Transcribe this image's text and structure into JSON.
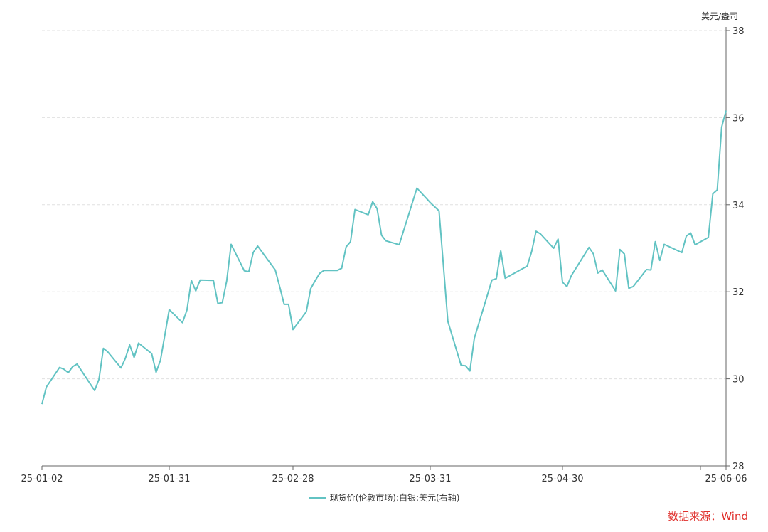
{
  "chart_data": {
    "type": "line",
    "title": "",
    "y_unit_label": "美元/盎司",
    "yaxis_side": "right",
    "ylim": [
      28,
      38
    ],
    "yticks": [
      28,
      30,
      32,
      34,
      36,
      38
    ],
    "xtick_labels": [
      "25-01-02",
      "25-01-31",
      "25-02-28",
      "25-03-31",
      "25-04-30",
      "25-06-06"
    ],
    "grid": "horizontal dashed",
    "legend_position": "bottom",
    "line_color": "#62c3c3",
    "series": [
      {
        "name": "现货价(伦敦市场):白银:美元(右轴)",
        "points": [
          [
            "2025-01-02",
            29.42
          ],
          [
            "2025-01-03",
            29.81
          ],
          [
            "2025-01-06",
            30.26
          ],
          [
            "2025-01-07",
            30.22
          ],
          [
            "2025-01-08",
            30.14
          ],
          [
            "2025-01-09",
            30.28
          ],
          [
            "2025-01-10",
            30.34
          ],
          [
            "2025-01-14",
            29.73
          ],
          [
            "2025-01-15",
            29.99
          ],
          [
            "2025-01-16",
            30.7
          ],
          [
            "2025-01-17",
            30.62
          ],
          [
            "2025-01-20",
            30.25
          ],
          [
            "2025-01-21",
            30.47
          ],
          [
            "2025-01-22",
            30.78
          ],
          [
            "2025-01-23",
            30.49
          ],
          [
            "2025-01-24",
            30.82
          ],
          [
            "2025-01-27",
            30.58
          ],
          [
            "2025-01-28",
            30.15
          ],
          [
            "2025-01-29",
            30.43
          ],
          [
            "2025-01-31",
            31.59
          ],
          [
            "2025-02-03",
            31.29
          ],
          [
            "2025-02-04",
            31.58
          ],
          [
            "2025-02-05",
            32.26
          ],
          [
            "2025-02-06",
            32.02
          ],
          [
            "2025-02-07",
            32.27
          ],
          [
            "2025-02-10",
            32.26
          ],
          [
            "2025-02-11",
            31.73
          ],
          [
            "2025-02-12",
            31.75
          ],
          [
            "2025-02-13",
            32.25
          ],
          [
            "2025-02-14",
            33.09
          ],
          [
            "2025-02-17",
            32.48
          ],
          [
            "2025-02-18",
            32.46
          ],
          [
            "2025-02-19",
            32.9
          ],
          [
            "2025-02-20",
            33.05
          ],
          [
            "2025-02-24",
            32.5
          ],
          [
            "2025-02-25",
            32.11
          ],
          [
            "2025-02-26",
            31.71
          ],
          [
            "2025-02-27",
            31.71
          ],
          [
            "2025-02-28",
            31.13
          ],
          [
            "2025-03-03",
            31.54
          ],
          [
            "2025-03-04",
            32.07
          ],
          [
            "2025-03-05",
            32.25
          ],
          [
            "2025-03-06",
            32.42
          ],
          [
            "2025-03-07",
            32.49
          ],
          [
            "2025-03-10",
            32.49
          ],
          [
            "2025-03-11",
            32.54
          ],
          [
            "2025-03-12",
            33.03
          ],
          [
            "2025-03-13",
            33.15
          ],
          [
            "2025-03-14",
            33.89
          ],
          [
            "2025-03-17",
            33.77
          ],
          [
            "2025-03-18",
            34.07
          ],
          [
            "2025-03-19",
            33.91
          ],
          [
            "2025-03-20",
            33.3
          ],
          [
            "2025-03-21",
            33.17
          ],
          [
            "2025-03-24",
            33.08
          ],
          [
            "2025-03-28",
            34.38
          ],
          [
            "2025-03-31",
            34.05
          ],
          [
            "2025-04-02",
            33.86
          ],
          [
            "2025-04-04",
            31.32
          ],
          [
            "2025-04-07",
            30.31
          ],
          [
            "2025-04-08",
            30.3
          ],
          [
            "2025-04-09",
            30.18
          ],
          [
            "2025-04-10",
            30.93
          ],
          [
            "2025-04-14",
            32.27
          ],
          [
            "2025-04-15",
            32.3
          ],
          [
            "2025-04-16",
            32.94
          ],
          [
            "2025-04-17",
            32.31
          ],
          [
            "2025-04-22",
            32.59
          ],
          [
            "2025-04-23",
            32.92
          ],
          [
            "2025-04-24",
            33.39
          ],
          [
            "2025-04-25",
            33.33
          ],
          [
            "2025-04-28",
            33.0
          ],
          [
            "2025-04-29",
            33.21
          ],
          [
            "2025-04-30",
            32.22
          ],
          [
            "2025-05-01",
            32.12
          ],
          [
            "2025-05-02",
            32.37
          ],
          [
            "2025-05-06",
            33.02
          ],
          [
            "2025-05-07",
            32.87
          ],
          [
            "2025-05-08",
            32.43
          ],
          [
            "2025-05-09",
            32.5
          ],
          [
            "2025-05-12",
            32.02
          ],
          [
            "2025-05-13",
            32.97
          ],
          [
            "2025-05-14",
            32.87
          ],
          [
            "2025-05-15",
            32.08
          ],
          [
            "2025-05-16",
            32.12
          ],
          [
            "2025-05-19",
            32.51
          ],
          [
            "2025-05-20",
            32.5
          ],
          [
            "2025-05-21",
            33.15
          ],
          [
            "2025-05-22",
            32.72
          ],
          [
            "2025-05-23",
            33.09
          ],
          [
            "2025-05-27",
            32.9
          ],
          [
            "2025-05-28",
            33.28
          ],
          [
            "2025-05-29",
            33.35
          ],
          [
            "2025-05-30",
            33.08
          ],
          [
            "2025-06-02",
            33.25
          ],
          [
            "2025-06-03",
            34.25
          ],
          [
            "2025-06-04",
            34.34
          ],
          [
            "2025-06-05",
            35.78
          ],
          [
            "2025-06-06",
            36.16
          ]
        ]
      }
    ]
  },
  "source": "数据来源：Wind"
}
